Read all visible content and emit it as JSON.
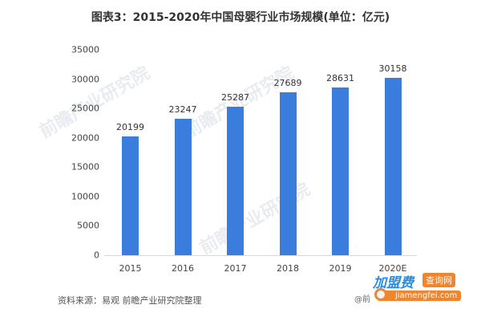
{
  "title": "图表3：2015-2020年中国母婴行业市场规模(单位：亿元)",
  "source": "资料来源：易观 前瞻产业研究院整理",
  "watermarks": [
    "前瞻产业研究院",
    "前瞻产业研究院",
    "前瞻产业研究院"
  ],
  "brand": {
    "name": "加盟费",
    "tag": "查询网",
    "at": "@前",
    "url": "jiamengfei.com"
  },
  "colors": {
    "bar": "#3a7ddc",
    "brand_blue": "#2b8de0",
    "brand_orange": "#f0852d"
  },
  "chart_data": {
    "type": "bar",
    "title": "图表3：2015-2020年中国母婴行业市场规模(单位：亿元)",
    "xlabel": "",
    "ylabel": "",
    "categories": [
      "2015",
      "2016",
      "2017",
      "2018",
      "2019",
      "2020E"
    ],
    "values": [
      20199,
      23247,
      25287,
      27689,
      28631,
      30158
    ],
    "value_labels": [
      "20199",
      "23247",
      "25287",
      "27689",
      "28631",
      "30158"
    ],
    "ylim": [
      0,
      35000
    ],
    "yticks": [
      "0",
      "5000",
      "10000",
      "15000",
      "20000",
      "25000",
      "30000",
      "35000"
    ],
    "grid": false,
    "legend": null,
    "unit": "亿元"
  }
}
